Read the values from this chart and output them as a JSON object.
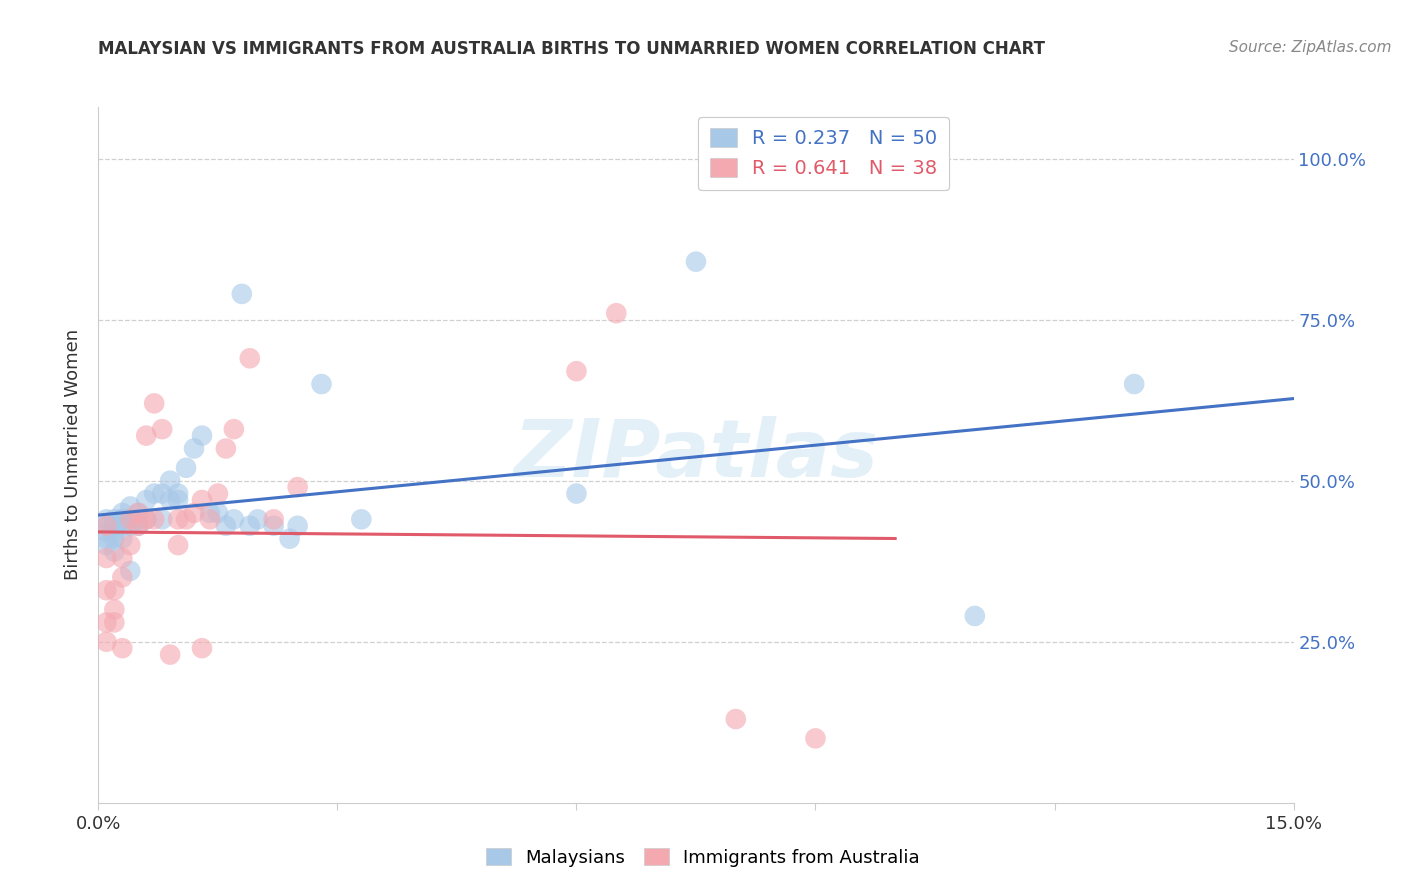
{
  "title": "MALAYSIAN VS IMMIGRANTS FROM AUSTRALIA BIRTHS TO UNMARRIED WOMEN CORRELATION CHART",
  "source": "Source: ZipAtlas.com",
  "ylabel": "Births to Unmarried Women",
  "xlim": [
    0.0,
    0.15
  ],
  "ylim": [
    0.0,
    1.08
  ],
  "yticks": [
    0.25,
    0.5,
    0.75,
    1.0
  ],
  "ytick_labels": [
    "25.0%",
    "50.0%",
    "75.0%",
    "100.0%"
  ],
  "xticks": [
    0.0,
    0.03,
    0.06,
    0.09,
    0.12,
    0.15
  ],
  "xtick_labels": [
    "0.0%",
    "",
    "",
    "",
    "",
    "15.0%"
  ],
  "blue_R": 0.237,
  "blue_N": 50,
  "pink_R": 0.641,
  "pink_N": 38,
  "blue_color": "#a8c8e8",
  "pink_color": "#f4a8b0",
  "blue_line_color": "#4472c4",
  "pink_line_color": "#e05a6a",
  "grid_color": "#d0d0d0",
  "watermark": "ZIPatlas",
  "blue_x": [
    0.001,
    0.001,
    0.001,
    0.001,
    0.001,
    0.002,
    0.002,
    0.002,
    0.002,
    0.002,
    0.003,
    0.003,
    0.003,
    0.003,
    0.003,
    0.004,
    0.004,
    0.004,
    0.004,
    0.005,
    0.005,
    0.005,
    0.006,
    0.006,
    0.007,
    0.008,
    0.008,
    0.009,
    0.009,
    0.01,
    0.01,
    0.011,
    0.012,
    0.013,
    0.014,
    0.015,
    0.016,
    0.017,
    0.018,
    0.019,
    0.02,
    0.022,
    0.024,
    0.025,
    0.028,
    0.033,
    0.06,
    0.075,
    0.11,
    0.13
  ],
  "blue_y": [
    0.43,
    0.44,
    0.42,
    0.41,
    0.4,
    0.44,
    0.43,
    0.42,
    0.41,
    0.39,
    0.45,
    0.44,
    0.43,
    0.41,
    0.44,
    0.46,
    0.44,
    0.43,
    0.36,
    0.45,
    0.44,
    0.43,
    0.44,
    0.47,
    0.48,
    0.48,
    0.44,
    0.5,
    0.47,
    0.47,
    0.48,
    0.52,
    0.55,
    0.57,
    0.45,
    0.45,
    0.43,
    0.44,
    0.79,
    0.43,
    0.44,
    0.43,
    0.41,
    0.43,
    0.65,
    0.44,
    0.48,
    0.84,
    0.29,
    0.65
  ],
  "pink_x": [
    0.001,
    0.001,
    0.001,
    0.001,
    0.001,
    0.002,
    0.002,
    0.002,
    0.003,
    0.003,
    0.003,
    0.004,
    0.004,
    0.005,
    0.005,
    0.006,
    0.006,
    0.007,
    0.007,
    0.008,
    0.009,
    0.01,
    0.01,
    0.011,
    0.012,
    0.013,
    0.013,
    0.014,
    0.015,
    0.016,
    0.017,
    0.019,
    0.022,
    0.025,
    0.06,
    0.065,
    0.08,
    0.09
  ],
  "pink_y": [
    0.43,
    0.38,
    0.33,
    0.28,
    0.25,
    0.33,
    0.3,
    0.28,
    0.38,
    0.35,
    0.24,
    0.44,
    0.4,
    0.45,
    0.43,
    0.57,
    0.44,
    0.44,
    0.62,
    0.58,
    0.23,
    0.44,
    0.4,
    0.44,
    0.45,
    0.47,
    0.24,
    0.44,
    0.48,
    0.55,
    0.58,
    0.69,
    0.44,
    0.49,
    0.67,
    0.76,
    0.13,
    0.1
  ]
}
